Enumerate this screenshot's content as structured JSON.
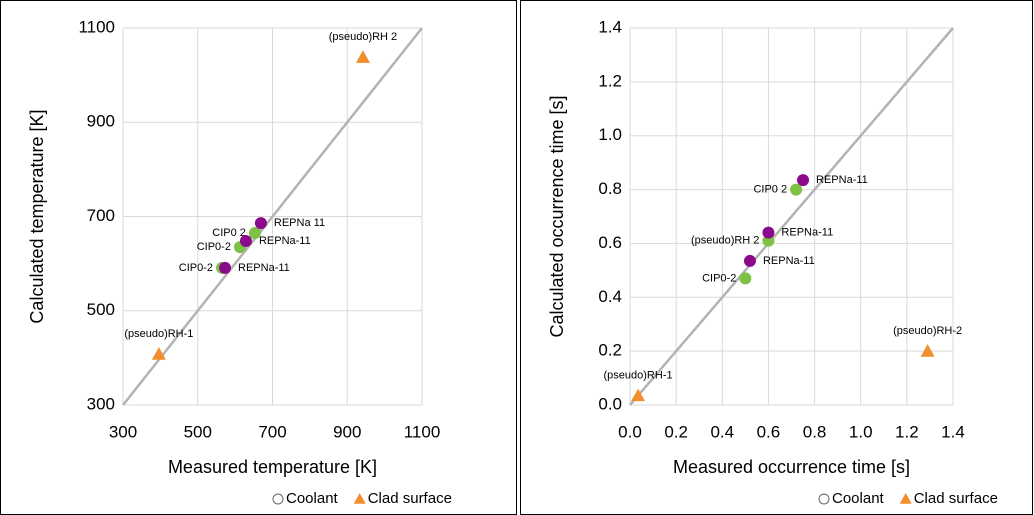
{
  "chart_data": [
    {
      "type": "scatter",
      "x_label": "Measured temperature [K]",
      "y_label": "Calculated temperature [K]",
      "xlim": [
        300,
        1100
      ],
      "ylim": [
        300,
        1100
      ],
      "xticks": [
        300,
        500,
        700,
        900,
        1100
      ],
      "yticks": [
        300,
        500,
        700,
        900,
        1100
      ],
      "grid": true,
      "diagonal_color": "#b3b3b3",
      "series": [
        {
          "color": "#7dc242",
          "marker": "circle",
          "x": [
            565,
            613,
            653
          ],
          "values": [
            591,
            635,
            665
          ],
          "labels": [
            "CIP0-2",
            "CIP0-2",
            "CIP0 2"
          ]
        },
        {
          "color": "#8b0a8c",
          "marker": "circle",
          "x": [
            573,
            629,
            669
          ],
          "values": [
            591,
            648,
            686
          ],
          "labels": [
            "REPNa-11",
            "REPNa-11",
            "REPNa 11"
          ]
        },
        {
          "color": "#f28e2b",
          "marker": "triangle",
          "x": [
            396,
            942
          ],
          "values": [
            408,
            1038
          ],
          "labels": [
            "(pseudo)RH-1",
            "(pseudo)RH 2"
          ]
        }
      ],
      "legend": [
        {
          "name": "Coolant",
          "marker": "circle-hollow"
        },
        {
          "name": "Clad surface",
          "marker": "triangle"
        }
      ],
      "legend_color": "#f28e2b"
    },
    {
      "type": "scatter",
      "x_label": "Measured occurrence time [s]",
      "y_label": "Calculated occurrence time [s]",
      "xlim": [
        0,
        1.4
      ],
      "ylim": [
        0,
        1.4
      ],
      "xticks": [
        {
          "value": 0,
          "label": "0.0"
        },
        0.2,
        0.4,
        0.6,
        0.8,
        {
          "value": 1,
          "label": "1.0"
        },
        1.2,
        1.4
      ],
      "yticks": [
        {
          "value": 0,
          "label": "0.0"
        },
        0.2,
        0.4,
        0.6,
        0.8,
        {
          "value": 1,
          "label": "1.0"
        },
        1.2,
        1.4
      ],
      "grid": true,
      "diagonal_color": "#b3b3b3",
      "series": [
        {
          "color": "#7dc242",
          "marker": "circle",
          "x": [
            0.5,
            0.6,
            0.72
          ],
          "values": [
            0.47,
            0.61,
            0.8
          ],
          "labels": [
            "CIP0-2",
            "(pseudo)RH 2",
            "CIP0 2"
          ]
        },
        {
          "color": "#8b0a8c",
          "marker": "circle",
          "x": [
            0.52,
            0.6,
            0.75
          ],
          "values": [
            0.535,
            0.64,
            0.835
          ],
          "labels": [
            "REPNa-11",
            "REPNa-11",
            "REPNa-11"
          ]
        },
        {
          "color": "#f28e2b",
          "marker": "triangle",
          "x": [
            0.035,
            1.29
          ],
          "values": [
            0.035,
            0.2
          ],
          "labels": [
            "(pseudo)RH-1",
            "(pseudo)RH-2"
          ]
        }
      ],
      "legend": [
        {
          "name": "Coolant",
          "marker": "circle-hollow"
        },
        {
          "name": "Clad surface",
          "marker": "triangle"
        }
      ],
      "legend_color": "#f28e2b"
    }
  ]
}
